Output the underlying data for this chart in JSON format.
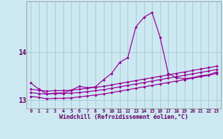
{
  "xlabel": "Windchill (Refroidissement éolien,°C)",
  "bg_color": "#cce8f0",
  "grid_color": "#aaccd8",
  "line_color": "#990099",
  "x": [
    0,
    1,
    2,
    3,
    4,
    5,
    6,
    7,
    8,
    9,
    10,
    11,
    12,
    13,
    14,
    15,
    16,
    17,
    18,
    19,
    20,
    21,
    22,
    23
  ],
  "y_main": [
    13.35,
    13.22,
    13.12,
    13.14,
    13.14,
    13.2,
    13.28,
    13.25,
    13.27,
    13.42,
    13.55,
    13.78,
    13.88,
    14.52,
    14.72,
    14.82,
    14.3,
    13.55,
    13.46,
    13.44,
    13.46,
    13.5,
    13.52,
    13.58
  ],
  "y_line2": [
    13.22,
    13.2,
    13.18,
    13.19,
    13.19,
    13.2,
    13.22,
    13.24,
    13.26,
    13.28,
    13.31,
    13.34,
    13.37,
    13.4,
    13.43,
    13.46,
    13.49,
    13.52,
    13.55,
    13.58,
    13.61,
    13.64,
    13.67,
    13.7
  ],
  "y_line3": [
    13.15,
    13.13,
    13.12,
    13.13,
    13.13,
    13.14,
    13.15,
    13.17,
    13.19,
    13.21,
    13.24,
    13.27,
    13.3,
    13.33,
    13.36,
    13.39,
    13.42,
    13.45,
    13.48,
    13.51,
    13.54,
    13.57,
    13.6,
    13.63
  ],
  "y_line4": [
    13.07,
    13.05,
    13.02,
    13.03,
    13.03,
    13.04,
    13.06,
    13.08,
    13.1,
    13.12,
    13.15,
    13.18,
    13.21,
    13.24,
    13.27,
    13.3,
    13.33,
    13.36,
    13.39,
    13.42,
    13.45,
    13.48,
    13.51,
    13.55
  ],
  "ylim": [
    12.82,
    15.05
  ],
  "yticks": [
    13.0,
    14.0
  ],
  "ytick_labels": [
    "13",
    "14"
  ]
}
